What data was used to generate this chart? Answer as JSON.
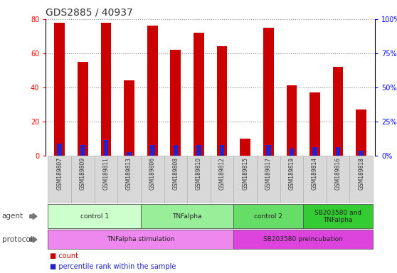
{
  "title": "GDS2885 / 40937",
  "samples": [
    "GSM189807",
    "GSM189809",
    "GSM189811",
    "GSM189813",
    "GSM189806",
    "GSM189808",
    "GSM189810",
    "GSM189812",
    "GSM189815",
    "GSM189817",
    "GSM189819",
    "GSM189814",
    "GSM189816",
    "GSM189818"
  ],
  "count_values": [
    78,
    55,
    78,
    44,
    76,
    62,
    72,
    64,
    10,
    75,
    41,
    37,
    52,
    27
  ],
  "percentile_values": [
    7,
    6,
    9,
    2,
    6,
    6,
    6,
    6,
    0,
    6,
    4,
    5,
    5,
    3
  ],
  "ylim_left": [
    0,
    80
  ],
  "ylim_right": [
    0,
    100
  ],
  "yticks_left": [
    0,
    20,
    40,
    60,
    80
  ],
  "yticks_right": [
    0,
    25,
    50,
    75,
    100
  ],
  "bar_color_red": "#cc0000",
  "bar_color_blue": "#2222cc",
  "agent_groups": [
    {
      "label": "control 1",
      "start": 0,
      "end": 4,
      "color": "#ccffcc"
    },
    {
      "label": "TNFalpha",
      "start": 4,
      "end": 8,
      "color": "#99ee99"
    },
    {
      "label": "control 2",
      "start": 8,
      "end": 11,
      "color": "#66dd66"
    },
    {
      "label": "SB203580 and\nTNFalpha",
      "start": 11,
      "end": 14,
      "color": "#33cc33"
    }
  ],
  "protocol_groups": [
    {
      "label": "TNFalpha stimulation",
      "start": 0,
      "end": 8,
      "color": "#ee88ee"
    },
    {
      "label": "SB203580 preincubation",
      "start": 8,
      "end": 14,
      "color": "#dd44dd"
    }
  ],
  "tick_fontsize": 7,
  "grid_color": "#888888"
}
